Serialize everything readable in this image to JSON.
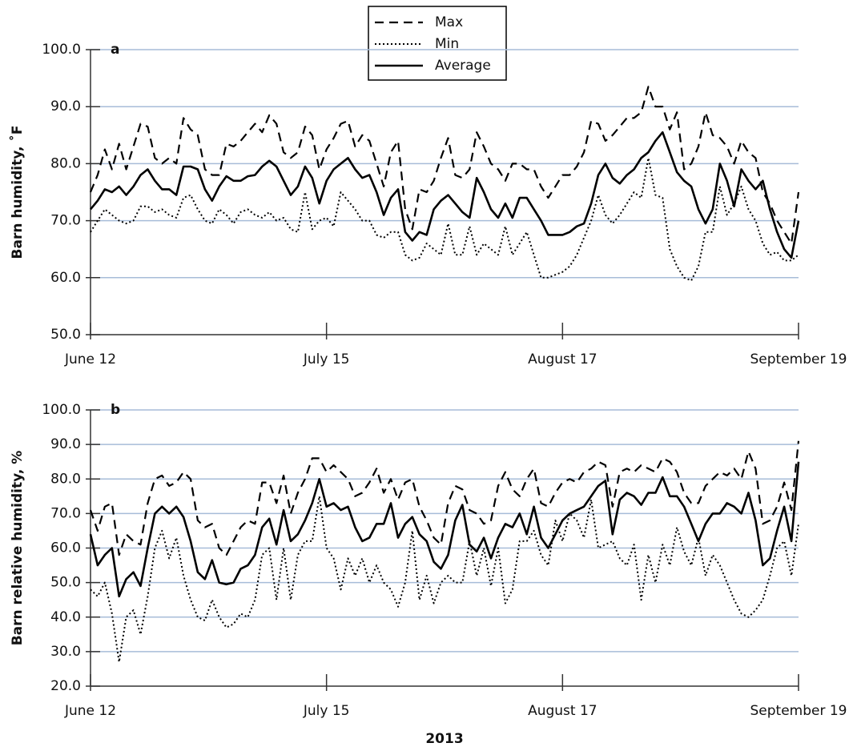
{
  "chart_data": [
    {
      "type": "line",
      "label": "a",
      "ylabel": "Barn humidity, ˚F",
      "xlim": [
        0,
        99
      ],
      "xticks": [
        {
          "value": 0,
          "label": "June 12"
        },
        {
          "value": 33,
          "label": "July 15"
        },
        {
          "value": 66,
          "label": "August 17"
        },
        {
          "value": 99,
          "label": "September 19"
        }
      ],
      "ylim": [
        50,
        100
      ],
      "yticks": [
        {
          "value": 50,
          "label": "50.0"
        },
        {
          "value": 60,
          "label": "60.0"
        },
        {
          "value": 70,
          "label": "70.0"
        },
        {
          "value": 80,
          "label": "80.0"
        },
        {
          "value": 90,
          "label": "90.0"
        },
        {
          "value": 100,
          "label": "100.0"
        }
      ],
      "grid": true,
      "legend": "top",
      "series": [
        {
          "name": "Max",
          "color": "#000000",
          "dash": "dashed",
          "values": [
            75,
            78,
            82.5,
            79,
            83.5,
            79,
            83,
            87,
            86.5,
            81,
            80,
            81,
            80,
            88,
            86,
            85,
            79,
            78,
            78,
            83.5,
            83,
            84,
            85.5,
            87,
            85.5,
            88.5,
            87,
            82,
            81,
            82,
            86.5,
            85,
            79,
            82.5,
            84.5,
            87,
            87.5,
            83,
            85,
            84,
            80,
            76,
            82,
            84,
            72,
            68.5,
            75.5,
            75,
            77,
            81,
            84.5,
            78,
            77.5,
            79,
            85.5,
            83,
            80,
            79,
            77,
            80,
            80,
            79,
            79,
            76,
            74,
            76,
            78,
            78,
            79.5,
            82,
            87.5,
            87,
            84,
            85,
            86.5,
            88,
            88,
            89,
            93.5,
            90,
            90,
            86,
            89,
            79,
            80,
            83,
            89,
            85,
            84.5,
            83,
            80,
            84,
            82,
            81,
            75,
            73,
            70,
            68,
            66,
            75
          ]
        },
        {
          "name": "Min",
          "color": "#000000",
          "dash": "dotted",
          "values": [
            68,
            70,
            72,
            71,
            70,
            69.5,
            70,
            72.5,
            72.5,
            71.5,
            72,
            71,
            70.5,
            74,
            74.5,
            72,
            70,
            69.5,
            72,
            71,
            69.5,
            71.5,
            72,
            71,
            70.5,
            71.5,
            70,
            70.5,
            68.5,
            68,
            75,
            68.5,
            70,
            70.5,
            69,
            75,
            73.5,
            72,
            70,
            70,
            67.5,
            67,
            68,
            68,
            64,
            63,
            63.5,
            66,
            65,
            64,
            69.5,
            64,
            64,
            69,
            64,
            66,
            65,
            64,
            69,
            64,
            66,
            68,
            64,
            60,
            60,
            60.5,
            61,
            62,
            64,
            67,
            70,
            74.5,
            71,
            69.5,
            71,
            73,
            75,
            74,
            81,
            74.5,
            74,
            65,
            62,
            60,
            59.5,
            62,
            68,
            68,
            76,
            71,
            73,
            76,
            72,
            70,
            66,
            64,
            64.5,
            63,
            63,
            64
          ]
        },
        {
          "name": "Average",
          "color": "#000000",
          "dash": "solid",
          "values": [
            72,
            73.5,
            75.5,
            75,
            76,
            74.5,
            76,
            78,
            79,
            77,
            75.5,
            75.5,
            74.5,
            79.5,
            79.5,
            79,
            75.5,
            73.5,
            76,
            77.8,
            77,
            77,
            77.8,
            78,
            79.5,
            80.5,
            79.5,
            77,
            74.5,
            76,
            79.5,
            77.5,
            73,
            77,
            79,
            80,
            81,
            79,
            77.5,
            78,
            75,
            71,
            74,
            75.5,
            68,
            66.5,
            68,
            67.5,
            72,
            73.5,
            74.5,
            73,
            71.5,
            70.5,
            77.5,
            75,
            72,
            70.5,
            73,
            70.5,
            74,
            74,
            72,
            70,
            67.5,
            67.5,
            67.5,
            68,
            69,
            69.5,
            73,
            78,
            80,
            77.5,
            76.5,
            78,
            79,
            81,
            82,
            84,
            85.5,
            82,
            78.5,
            77,
            76,
            72,
            69.5,
            72,
            80,
            77,
            72.5,
            79,
            77,
            75.5,
            77,
            72,
            68,
            65,
            63.5,
            70
          ]
        }
      ]
    },
    {
      "type": "line",
      "label": "b",
      "ylabel": "Barn relative humidity, %",
      "xlabel": "2013",
      "xlim": [
        0,
        99
      ],
      "xticks": [
        {
          "value": 0,
          "label": "June 12"
        },
        {
          "value": 33,
          "label": "July 15"
        },
        {
          "value": 66,
          "label": "August 17"
        },
        {
          "value": 99,
          "label": "September 19"
        }
      ],
      "ylim": [
        20,
        100
      ],
      "yticks": [
        {
          "value": 20,
          "label": "20.0"
        },
        {
          "value": 30,
          "label": "30.0"
        },
        {
          "value": 40,
          "label": "40.0"
        },
        {
          "value": 50,
          "label": "50.0"
        },
        {
          "value": 60,
          "label": "60.0"
        },
        {
          "value": 70,
          "label": "70.0"
        },
        {
          "value": 80,
          "label": "80.0"
        },
        {
          "value": 90,
          "label": "90.0"
        },
        {
          "value": 100,
          "label": "100.0"
        }
      ],
      "grid": true,
      "series": [
        {
          "color": "#000000",
          "dash": "dashed",
          "values": [
            71,
            65,
            72,
            73,
            58,
            64,
            62,
            61,
            73,
            80,
            81,
            78,
            79,
            82,
            80,
            68,
            66,
            67,
            60,
            58,
            62,
            66,
            68,
            67,
            79,
            79,
            73,
            81,
            70,
            76,
            80,
            86,
            86,
            82,
            84,
            82,
            80,
            75,
            76,
            79,
            83,
            76,
            80,
            74,
            79,
            80,
            72,
            68,
            63,
            61,
            73,
            78,
            77,
            71,
            70,
            67,
            68,
            78,
            82,
            77,
            75,
            80,
            83,
            73,
            72,
            76,
            79,
            80,
            79,
            82,
            83,
            85,
            84,
            72,
            82,
            83,
            82,
            84,
            83,
            82,
            86,
            85,
            82,
            76,
            73,
            73,
            78,
            80,
            82,
            81,
            83,
            80,
            88,
            83,
            67,
            68,
            72,
            79,
            71,
            91
          ]
        },
        {
          "color": "#000000",
          "dash": "dotted",
          "values": [
            48,
            46,
            50,
            41,
            27,
            40,
            42,
            35,
            46,
            60,
            65,
            57,
            63,
            52,
            45,
            40,
            39,
            45,
            40,
            37,
            38,
            41,
            40,
            45,
            58,
            60,
            45,
            60,
            45,
            58,
            62,
            62,
            75,
            60,
            57,
            48,
            57,
            52,
            57,
            50,
            55,
            50,
            48,
            43,
            50,
            65,
            45,
            52,
            44,
            50,
            52,
            50,
            50,
            62,
            52,
            60,
            49,
            60,
            44,
            48,
            62,
            62,
            65,
            58,
            55,
            68,
            62,
            70,
            68,
            63,
            74,
            60,
            61,
            62,
            57,
            55,
            61,
            45,
            58,
            50,
            61,
            55,
            66,
            59,
            55,
            63,
            52,
            58,
            55,
            50,
            45,
            41,
            40,
            42,
            45,
            52,
            60,
            62,
            52,
            67
          ]
        },
        {
          "color": "#000000",
          "dash": "solid",
          "values": [
            64,
            55,
            58,
            60,
            46,
            51,
            53,
            49,
            60,
            70,
            72,
            70,
            72,
            69,
            62,
            53,
            51,
            56.5,
            50,
            49.5,
            50,
            54,
            55,
            58,
            66,
            68.5,
            61,
            71,
            62,
            64,
            68,
            73,
            80,
            72,
            73,
            71,
            72,
            66,
            62,
            63,
            67,
            67,
            73,
            63,
            67,
            69,
            64,
            62,
            56,
            54,
            58,
            68,
            72.5,
            61,
            59,
            63,
            57,
            63,
            67,
            66,
            70,
            64,
            72,
            63,
            60,
            64,
            68,
            70,
            71,
            72,
            75,
            78,
            79.5,
            64,
            74,
            76,
            75,
            72.5,
            76,
            76,
            80.5,
            75,
            75,
            72,
            67,
            62,
            67,
            70,
            70,
            73,
            72,
            70,
            76,
            68,
            55,
            57,
            65,
            72,
            62,
            85
          ]
        }
      ]
    }
  ]
}
